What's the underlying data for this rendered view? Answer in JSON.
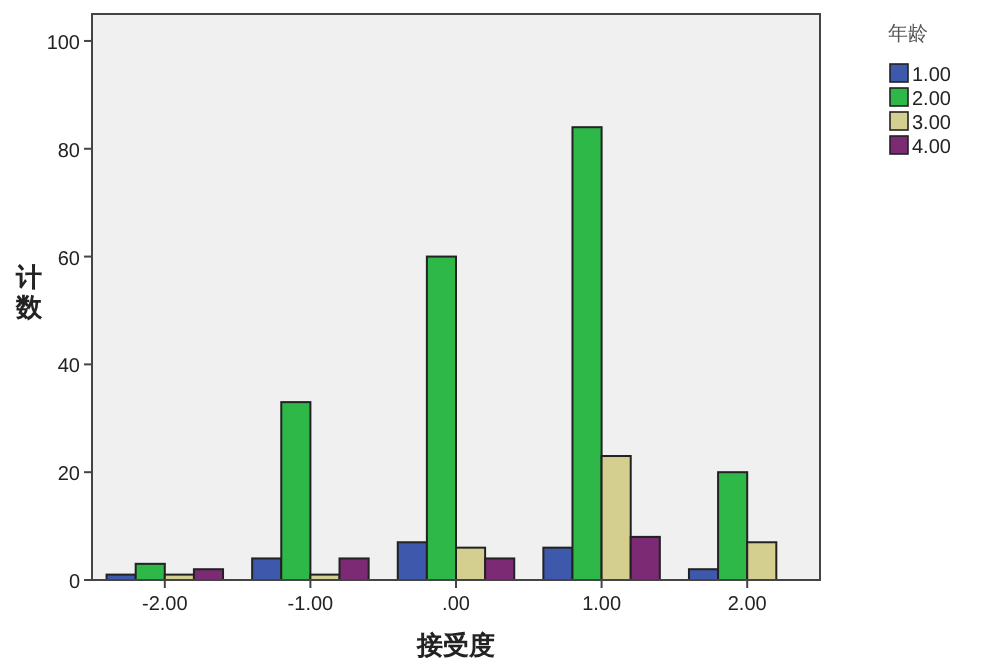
{
  "chart_data": {
    "type": "bar",
    "xlabel": "接受度",
    "ylabel": "计数",
    "legend_title": "年龄",
    "categories": [
      "-2.00",
      "-1.00",
      ".00",
      "1.00",
      "2.00"
    ],
    "series": [
      {
        "name": "1.00",
        "color": "#3e58ac",
        "values": [
          1,
          4,
          7,
          6,
          2
        ]
      },
      {
        "name": "2.00",
        "color": "#2eb848",
        "values": [
          3,
          33,
          60,
          84,
          20
        ]
      },
      {
        "name": "3.00",
        "color": "#d4cf8f",
        "values": [
          1,
          1,
          6,
          23,
          7
        ]
      },
      {
        "name": "4.00",
        "color": "#7b2a73",
        "values": [
          2,
          4,
          4,
          8,
          null
        ]
      }
    ],
    "ylim": [
      0,
      105
    ],
    "yticks": [
      0,
      20,
      40,
      60,
      80,
      100
    ],
    "grid": false,
    "legend": "top right"
  }
}
